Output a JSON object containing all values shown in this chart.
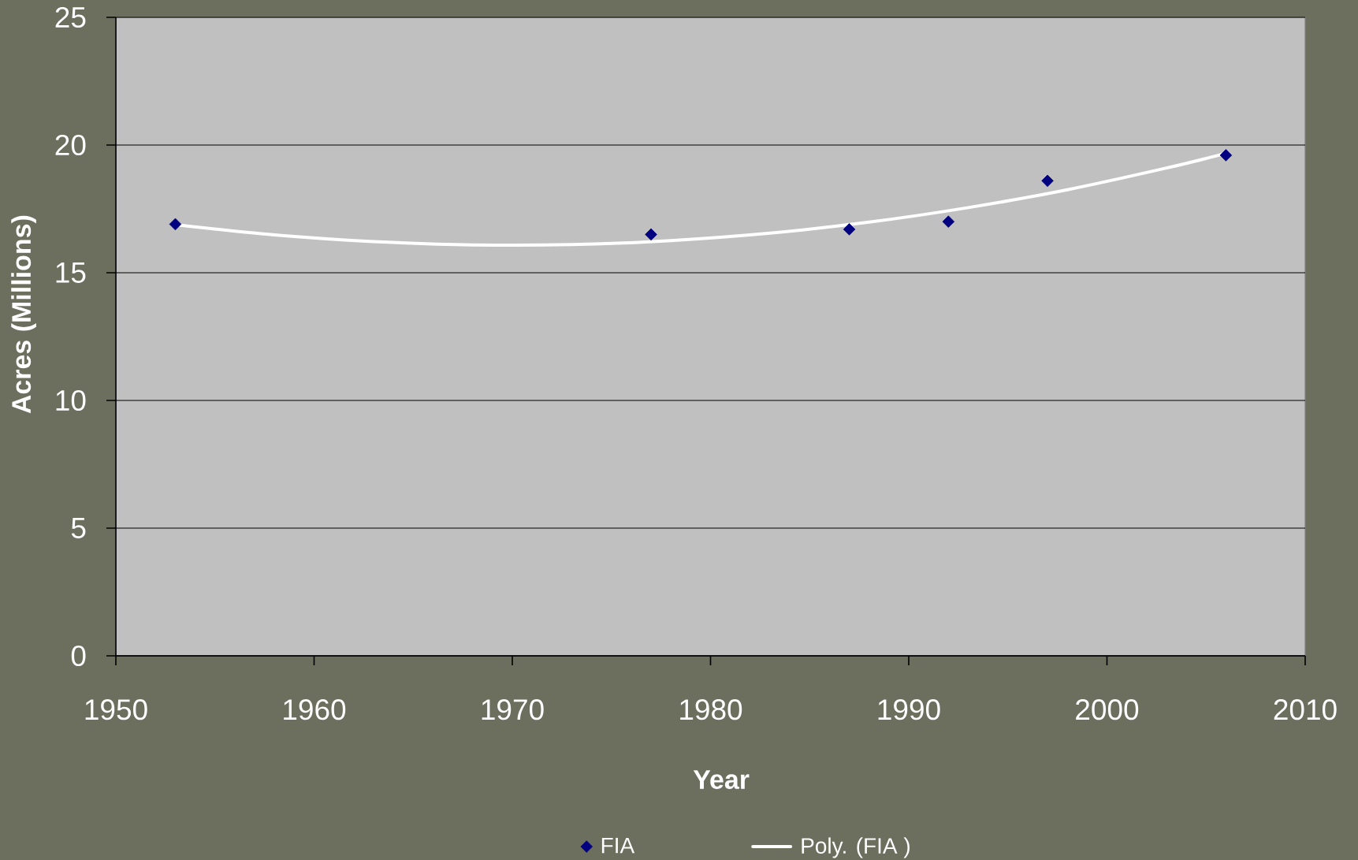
{
  "chart_data": {
    "type": "scatter",
    "xlabel": "Year",
    "ylabel": "Acres (Millions)",
    "xlim": [
      1950,
      2010
    ],
    "ylim": [
      0,
      25
    ],
    "xticks": [
      1950,
      1960,
      1970,
      1980,
      1990,
      2000,
      2010
    ],
    "yticks": [
      0,
      5,
      10,
      15,
      20,
      25
    ],
    "grid": "y",
    "legend": "bottom",
    "marker": "diamond",
    "series": [
      {
        "name": "FIA",
        "color": "#000080",
        "x": [
          1953,
          1977,
          1987,
          1992,
          1997,
          2006
        ],
        "values": [
          16.9,
          16.5,
          16.7,
          17.0,
          18.6,
          19.6
        ]
      },
      {
        "name": "Poly. (FIA )",
        "type": "line",
        "color": "#ffffff",
        "marker": "none",
        "x": [
          1953,
          1958,
          1963,
          1968,
          1973,
          1978,
          1983,
          1988,
          1993,
          1998,
          2003,
          2006
        ],
        "values": [
          16.88,
          16.48,
          16.22,
          16.09,
          16.1,
          16.26,
          16.55,
          16.98,
          17.55,
          18.25,
          19.1,
          19.67
        ]
      }
    ]
  }
}
